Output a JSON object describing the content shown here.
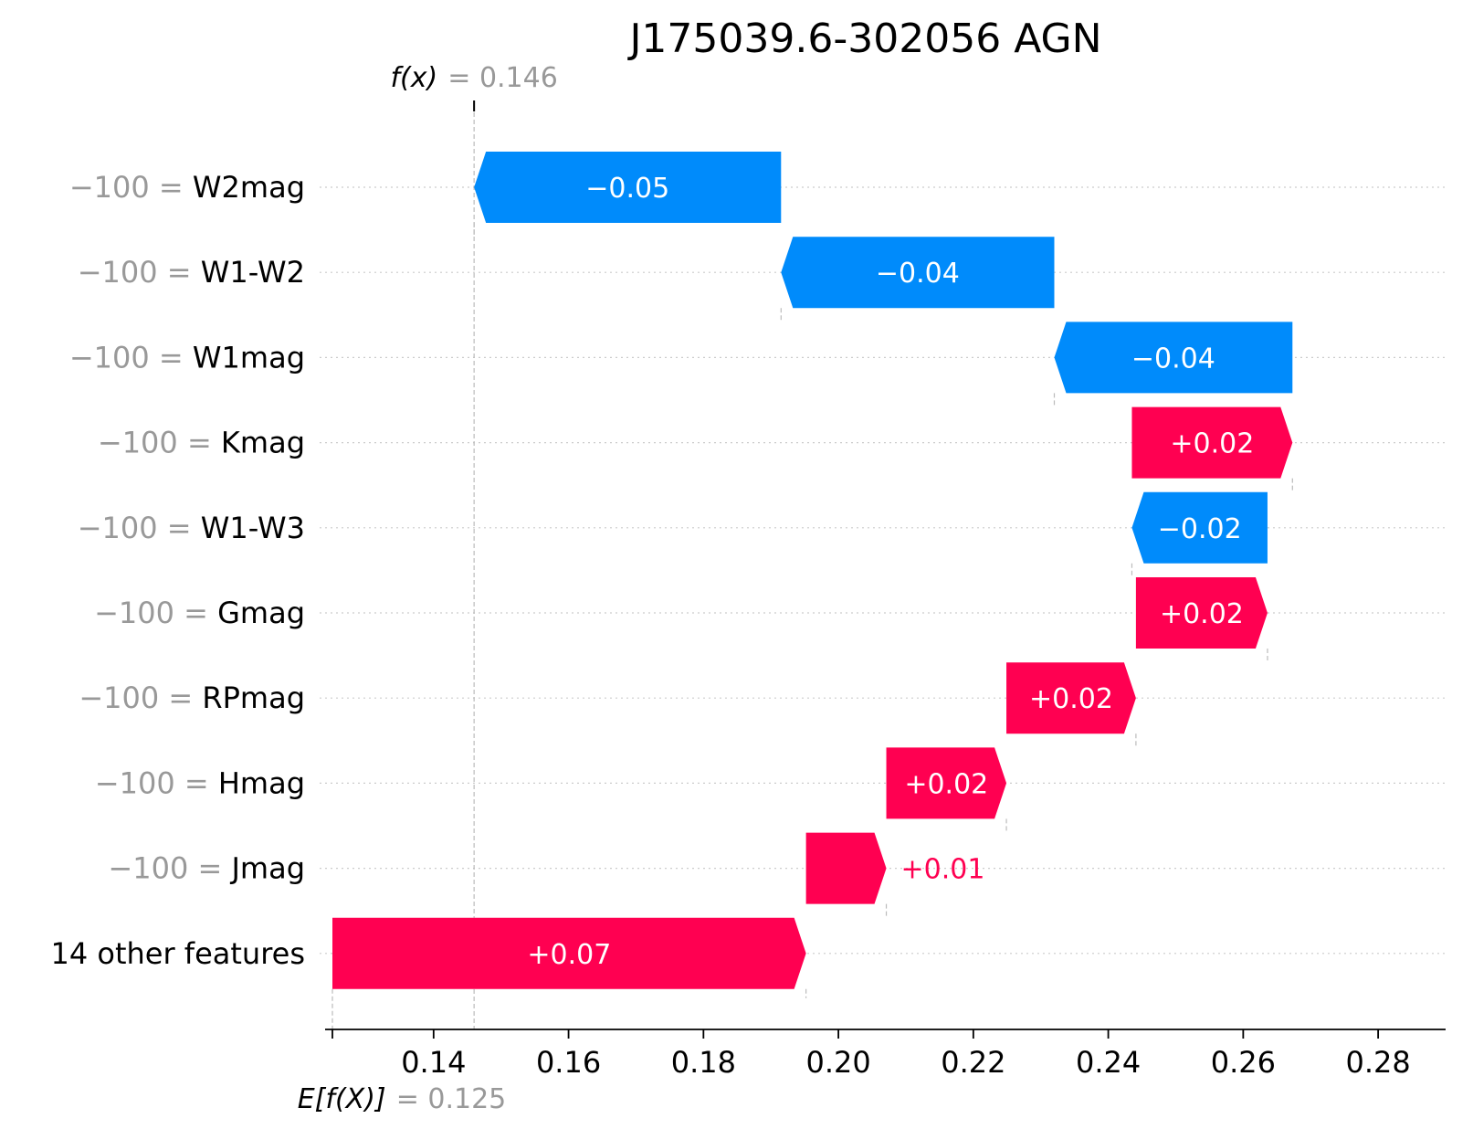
{
  "chart_data": {
    "type": "waterfall",
    "title": "J175039.6-302056 AGN",
    "base_value": 0.125,
    "base_label": "E[f(X)]",
    "base_display": "= 0.125",
    "output_value": 0.146,
    "output_label": "f(x)",
    "output_display": "= 0.146",
    "xlim": [
      0.125,
      0.29
    ],
    "xticks": [
      0.14,
      0.16,
      0.18,
      0.2,
      0.22,
      0.24,
      0.26,
      0.28
    ],
    "xtick_labels": [
      "0.14",
      "0.16",
      "0.18",
      "0.20",
      "0.22",
      "0.24",
      "0.26",
      "0.28"
    ],
    "features": [
      {
        "value_text": "−100 =",
        "name": "W2mag",
        "start": 0.1915,
        "end": 0.146,
        "label": "−0.05"
      },
      {
        "value_text": "−100 =",
        "name": "W1-W2",
        "start": 0.232,
        "end": 0.1915,
        "label": "−0.04"
      },
      {
        "value_text": "−100 =",
        "name": "W1mag",
        "start": 0.2673,
        "end": 0.232,
        "label": "−0.04"
      },
      {
        "value_text": "−100 =",
        "name": "Kmag",
        "start": 0.2435,
        "end": 0.2673,
        "label": "+0.02"
      },
      {
        "value_text": "−100 =",
        "name": "W1-W3",
        "start": 0.2636,
        "end": 0.2435,
        "label": "−0.02"
      },
      {
        "value_text": "−100 =",
        "name": "Gmag",
        "start": 0.2441,
        "end": 0.2636,
        "label": "+0.02"
      },
      {
        "value_text": "−100 =",
        "name": "RPmag",
        "start": 0.2249,
        "end": 0.2441,
        "label": "+0.02"
      },
      {
        "value_text": "−100 =",
        "name": "Hmag",
        "start": 0.2071,
        "end": 0.2249,
        "label": "+0.02"
      },
      {
        "value_text": "−100 =",
        "name": "Jmag",
        "start": 0.1952,
        "end": 0.2071,
        "label": "+0.01"
      },
      {
        "value_text": "",
        "name": "14 other features",
        "start": 0.125,
        "end": 0.1952,
        "label": "+0.07"
      }
    ],
    "colors": {
      "positive": "#ff0051",
      "negative": "#008bfb"
    }
  }
}
